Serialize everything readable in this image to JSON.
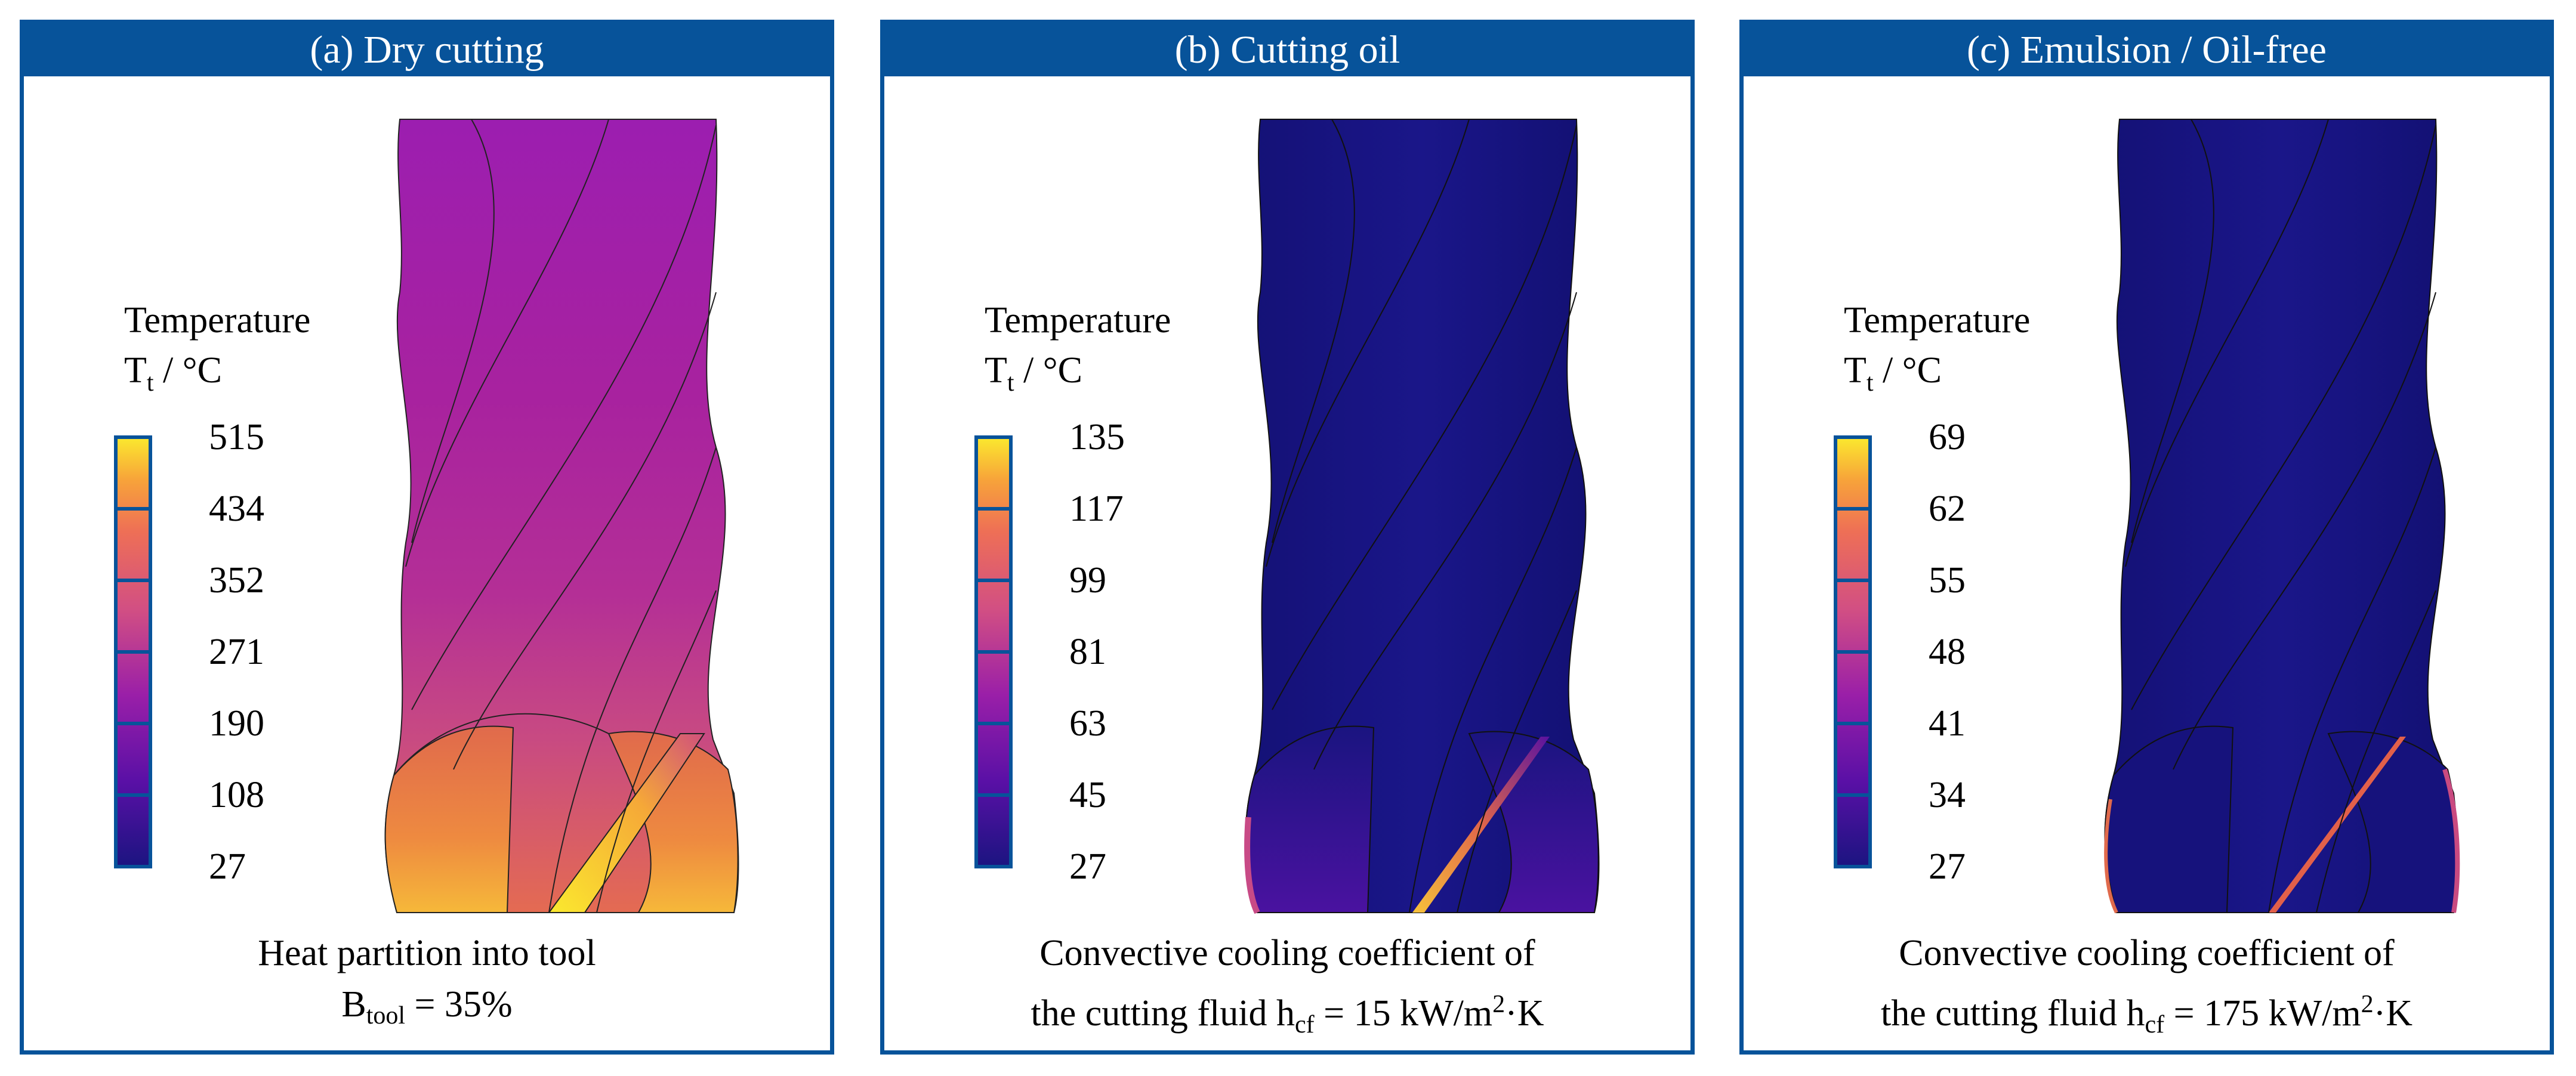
{
  "panels": [
    {
      "header": "(a) Dry cutting",
      "legend": {
        "title": "Temperature",
        "symbol": "T",
        "symbol_sub": "t",
        "unit": " / °C",
        "ticks": [
          "515",
          "434",
          "352",
          "271",
          "190",
          "108",
          "27"
        ]
      },
      "caption": {
        "line1": "Heat partition into tool",
        "symbol": "B",
        "symbol_sub": "tool",
        "value": " = 35%"
      }
    },
    {
      "header": "(b) Cutting oil",
      "legend": {
        "title": "Temperature",
        "symbol": "T",
        "symbol_sub": "t",
        "unit": " / °C",
        "ticks": [
          "135",
          "117",
          "99",
          "81",
          "63",
          "45",
          "27"
        ]
      },
      "caption": {
        "line1": "Convective cooling coefficient of",
        "prefix": "the cutting fluid h",
        "symbol_sub": "cf",
        "value": " = 15 kW/m",
        "sup": "2",
        "suffix": "·K"
      }
    },
    {
      "header": "(c) Emulsion / Oil-free",
      "legend": {
        "title": "Temperature",
        "symbol": "T",
        "symbol_sub": "t",
        "unit": " / °C",
        "ticks": [
          "69",
          "62",
          "55",
          "48",
          "41",
          "34",
          "27"
        ]
      },
      "caption": {
        "line1": "Convective cooling coefficient of",
        "prefix": "the cutting fluid h",
        "symbol_sub": "cf",
        "value": " = 175 kW/m",
        "sup": "2",
        "suffix": "·K"
      }
    }
  ],
  "colors": {
    "frame": "#07539a",
    "scale": [
      "#1b1480",
      "#5a10a6",
      "#9a1fa8",
      "#d24f83",
      "#ee6f56",
      "#f7a33a",
      "#fbe92e"
    ],
    "tool_dry": [
      "#9c1eb0",
      "#b02a9d",
      "#c24287",
      "#e0694f",
      "#f1a53a"
    ],
    "tool_cooled": "#12127a"
  }
}
